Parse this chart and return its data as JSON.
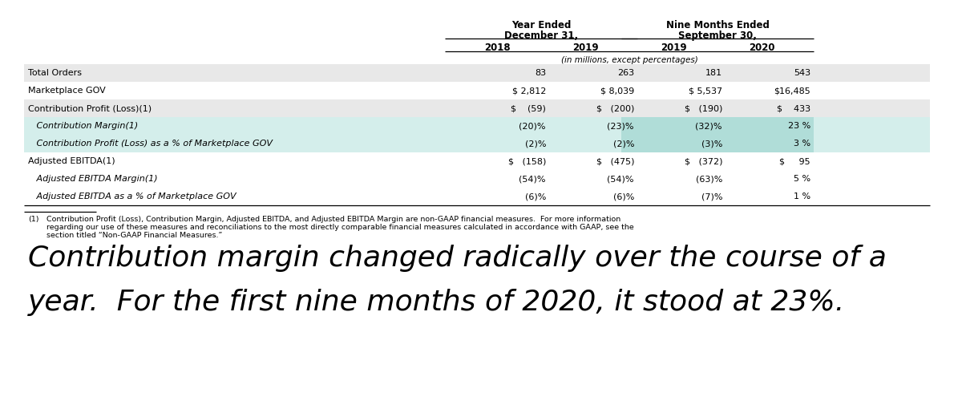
{
  "header1_line1": "Year Ended",
  "header1_line2": "December 31,",
  "header2_line1": "Nine Months Ended",
  "header2_line2": "September 30,",
  "col_years": [
    "2018",
    "2019",
    "2019",
    "2020"
  ],
  "subheader": "(in millions, except percentages)",
  "rows": [
    {
      "label": "Total Orders",
      "indent": 0,
      "italic": false,
      "values": [
        "83",
        "263",
        "181",
        "543"
      ],
      "bg": "#e8e8e8",
      "highlight_cols": []
    },
    {
      "label": "Marketplace GOV",
      "indent": 0,
      "italic": false,
      "values": [
        "$ 2,812",
        "$ 8,039",
        "$ 5,537",
        "$16,485"
      ],
      "bg": "#ffffff",
      "highlight_cols": []
    },
    {
      "label": "Contribution Profit (Loss)(1)",
      "indent": 0,
      "italic": false,
      "values": [
        "$    (59)",
        "$   (200)",
        "$   (190)",
        "$    433"
      ],
      "bg": "#e8e8e8",
      "highlight_cols": []
    },
    {
      "label": "   Contribution Margin(1)",
      "indent": 0,
      "italic": true,
      "values": [
        "(20)%",
        "(23)%",
        "(32)%",
        "23 %"
      ],
      "bg": "#d4eeeb",
      "highlight_cols": [
        2,
        3
      ]
    },
    {
      "label": "   Contribution Profit (Loss) as a % of Marketplace GOV",
      "indent": 0,
      "italic": true,
      "values": [
        "(2)%",
        "(2)%",
        "(3)%",
        "3 %"
      ],
      "bg": "#d4eeeb",
      "highlight_cols": [
        2,
        3
      ]
    },
    {
      "label": "Adjusted EBITDA(1)",
      "indent": 0,
      "italic": false,
      "values": [
        "$   (158)",
        "$   (475)",
        "$   (372)",
        "$     95"
      ],
      "bg": "#ffffff",
      "highlight_cols": []
    },
    {
      "label": "   Adjusted EBITDA Margin(1)",
      "indent": 0,
      "italic": true,
      "values": [
        "(54)%",
        "(54)%",
        "(63)%",
        "5 %"
      ],
      "bg": "#ffffff",
      "highlight_cols": []
    },
    {
      "label": "   Adjusted EBITDA as a % of Marketplace GOV",
      "indent": 0,
      "italic": true,
      "values": [
        "(6)%",
        "(6)%",
        "(7)%",
        "1 %"
      ],
      "bg": "#ffffff",
      "highlight_cols": []
    }
  ],
  "footnote_num": "(1)",
  "footnote_text": "Contribution Profit (Loss), Contribution Margin, Adjusted EBITDA, and Adjusted EBITDA Margin are non-GAAP financial measures.  For more information\nregarding our use of these measures and reconciliations to the most directly comparable financial measures calculated in accordance with GAAP, see the\nsection titled “Non-GAAP Financial Measures.”",
  "annotation_line1": "Contribution margin changed radically over the course of a",
  "annotation_line2": "year.  For the first nine months of 2020, it stood at 23%.",
  "highlight_bg": "#b0ddd8",
  "table_bg_alt": "#e8e8e8"
}
